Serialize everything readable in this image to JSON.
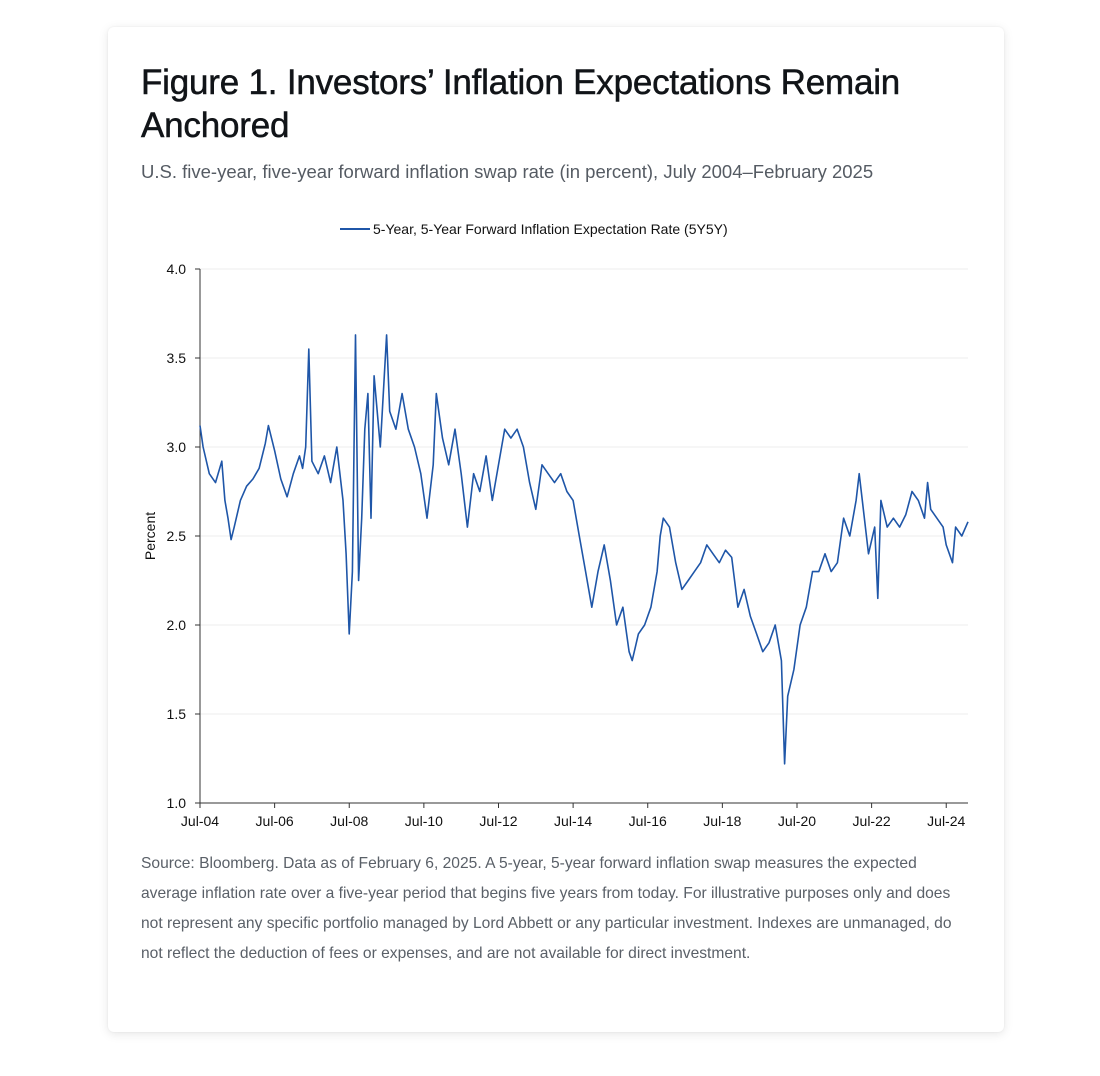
{
  "figure": {
    "title": "Figure 1. Investors’ Inflation Expectations Remain Anchored",
    "subtitle": "U.S. five-year, five-year forward inflation swap rate (in percent), July 2004–February 2025",
    "note": "Source: Bloomberg. Data as of February 6, 2025. A 5-year, 5-year forward inflation swap measures the expected average inflation rate over a five-year period that begins five years from today. For illustrative purposes only and does not represent any specific portfolio managed by Lord Abbett or any particular investment. Indexes are unmanaged, do not reflect the deduction of fees or expenses, and are not available for direct investment."
  },
  "chart_data": {
    "type": "line",
    "ylabel": "Percent",
    "xlabel": "",
    "ylim": [
      1.0,
      4.0
    ],
    "xlim": [
      "2004-07",
      "2025-02"
    ],
    "yticks": [
      "1.0",
      "1.5",
      "2.0",
      "2.5",
      "3.0",
      "3.5",
      "4.0"
    ],
    "xticks": [
      {
        "date": "2004-07",
        "label": "Jul-04"
      },
      {
        "date": "2006-07",
        "label": "Jul-06"
      },
      {
        "date": "2008-07",
        "label": "Jul-08"
      },
      {
        "date": "2010-07",
        "label": "Jul-10"
      },
      {
        "date": "2012-07",
        "label": "Jul-12"
      },
      {
        "date": "2014-07",
        "label": "Jul-14"
      },
      {
        "date": "2016-07",
        "label": "Jul-16"
      },
      {
        "date": "2018-07",
        "label": "Jul-18"
      },
      {
        "date": "2020-07",
        "label": "Jul-20"
      },
      {
        "date": "2022-07",
        "label": "Jul-22"
      },
      {
        "date": "2024-07",
        "label": "Jul-24"
      }
    ],
    "grid": true,
    "legend_position": "top-center",
    "series": [
      {
        "name": "5-Year, 5-Year Forward Inflation Expectation Rate (5Y5Y)",
        "color": "#1f56a8",
        "points": [
          [
            "2004-07",
            3.12
          ],
          [
            "2004-08",
            3.0
          ],
          [
            "2004-10",
            2.85
          ],
          [
            "2004-12",
            2.8
          ],
          [
            "2005-02",
            2.92
          ],
          [
            "2005-03",
            2.7
          ],
          [
            "2005-04",
            2.6
          ],
          [
            "2005-05",
            2.48
          ],
          [
            "2005-06",
            2.55
          ],
          [
            "2005-08",
            2.7
          ],
          [
            "2005-10",
            2.78
          ],
          [
            "2005-12",
            2.82
          ],
          [
            "2006-02",
            2.88
          ],
          [
            "2006-04",
            3.02
          ],
          [
            "2006-05",
            3.12
          ],
          [
            "2006-06",
            3.05
          ],
          [
            "2006-07",
            2.98
          ],
          [
            "2006-09",
            2.82
          ],
          [
            "2006-11",
            2.72
          ],
          [
            "2007-01",
            2.85
          ],
          [
            "2007-03",
            2.95
          ],
          [
            "2007-04",
            2.88
          ],
          [
            "2007-05",
            3.0
          ],
          [
            "2007-06",
            3.55
          ],
          [
            "2007-07",
            2.92
          ],
          [
            "2007-09",
            2.85
          ],
          [
            "2007-11",
            2.95
          ],
          [
            "2008-01",
            2.8
          ],
          [
            "2008-03",
            3.0
          ],
          [
            "2008-05",
            2.7
          ],
          [
            "2008-06",
            2.4
          ],
          [
            "2008-07",
            1.95
          ],
          [
            "2008-08",
            2.3
          ],
          [
            "2008-09",
            3.63
          ],
          [
            "2008-10",
            2.25
          ],
          [
            "2008-11",
            2.6
          ],
          [
            "2008-12",
            3.1
          ],
          [
            "2009-01",
            3.3
          ],
          [
            "2009-02",
            2.6
          ],
          [
            "2009-03",
            3.4
          ],
          [
            "2009-05",
            3.0
          ],
          [
            "2009-07",
            3.63
          ],
          [
            "2009-08",
            3.2
          ],
          [
            "2009-10",
            3.1
          ],
          [
            "2009-12",
            3.3
          ],
          [
            "2010-02",
            3.1
          ],
          [
            "2010-04",
            3.0
          ],
          [
            "2010-06",
            2.85
          ],
          [
            "2010-08",
            2.6
          ],
          [
            "2010-10",
            2.9
          ],
          [
            "2010-11",
            3.3
          ],
          [
            "2011-01",
            3.05
          ],
          [
            "2011-03",
            2.9
          ],
          [
            "2011-05",
            3.1
          ],
          [
            "2011-07",
            2.85
          ],
          [
            "2011-09",
            2.55
          ],
          [
            "2011-11",
            2.85
          ],
          [
            "2012-01",
            2.75
          ],
          [
            "2012-03",
            2.95
          ],
          [
            "2012-05",
            2.7
          ],
          [
            "2012-07",
            2.9
          ],
          [
            "2012-09",
            3.1
          ],
          [
            "2012-11",
            3.05
          ],
          [
            "2013-01",
            3.1
          ],
          [
            "2013-03",
            3.0
          ],
          [
            "2013-05",
            2.8
          ],
          [
            "2013-07",
            2.65
          ],
          [
            "2013-09",
            2.9
          ],
          [
            "2013-11",
            2.85
          ],
          [
            "2014-01",
            2.8
          ],
          [
            "2014-03",
            2.85
          ],
          [
            "2014-05",
            2.75
          ],
          [
            "2014-07",
            2.7
          ],
          [
            "2014-09",
            2.5
          ],
          [
            "2014-11",
            2.3
          ],
          [
            "2015-01",
            2.1
          ],
          [
            "2015-03",
            2.3
          ],
          [
            "2015-05",
            2.45
          ],
          [
            "2015-07",
            2.25
          ],
          [
            "2015-09",
            2.0
          ],
          [
            "2015-11",
            2.1
          ],
          [
            "2016-01",
            1.85
          ],
          [
            "2016-02",
            1.8
          ],
          [
            "2016-04",
            1.95
          ],
          [
            "2016-06",
            2.0
          ],
          [
            "2016-08",
            2.1
          ],
          [
            "2016-10",
            2.3
          ],
          [
            "2016-11",
            2.5
          ],
          [
            "2016-12",
            2.6
          ],
          [
            "2017-02",
            2.55
          ],
          [
            "2017-04",
            2.35
          ],
          [
            "2017-06",
            2.2
          ],
          [
            "2017-08",
            2.25
          ],
          [
            "2017-10",
            2.3
          ],
          [
            "2017-12",
            2.35
          ],
          [
            "2018-02",
            2.45
          ],
          [
            "2018-04",
            2.4
          ],
          [
            "2018-06",
            2.35
          ],
          [
            "2018-08",
            2.42
          ],
          [
            "2018-10",
            2.38
          ],
          [
            "2018-12",
            2.1
          ],
          [
            "2019-02",
            2.2
          ],
          [
            "2019-04",
            2.05
          ],
          [
            "2019-06",
            1.95
          ],
          [
            "2019-08",
            1.85
          ],
          [
            "2019-10",
            1.9
          ],
          [
            "2019-12",
            2.0
          ],
          [
            "2020-02",
            1.8
          ],
          [
            "2020-03",
            1.22
          ],
          [
            "2020-04",
            1.6
          ],
          [
            "2020-06",
            1.75
          ],
          [
            "2020-08",
            2.0
          ],
          [
            "2020-10",
            2.1
          ],
          [
            "2020-12",
            2.3
          ],
          [
            "2021-02",
            2.3
          ],
          [
            "2021-04",
            2.4
          ],
          [
            "2021-06",
            2.3
          ],
          [
            "2021-08",
            2.35
          ],
          [
            "2021-10",
            2.6
          ],
          [
            "2021-12",
            2.5
          ],
          [
            "2022-02",
            2.7
          ],
          [
            "2022-03",
            2.85
          ],
          [
            "2022-04",
            2.7
          ],
          [
            "2022-06",
            2.4
          ],
          [
            "2022-08",
            2.55
          ],
          [
            "2022-09",
            2.15
          ],
          [
            "2022-10",
            2.7
          ],
          [
            "2022-12",
            2.55
          ],
          [
            "2023-02",
            2.6
          ],
          [
            "2023-04",
            2.55
          ],
          [
            "2023-06",
            2.62
          ],
          [
            "2023-08",
            2.75
          ],
          [
            "2023-10",
            2.7
          ],
          [
            "2023-12",
            2.6
          ],
          [
            "2024-01",
            2.8
          ],
          [
            "2024-02",
            2.65
          ],
          [
            "2024-04",
            2.6
          ],
          [
            "2024-06",
            2.55
          ],
          [
            "2024-07",
            2.45
          ],
          [
            "2024-09",
            2.35
          ],
          [
            "2024-10",
            2.55
          ],
          [
            "2024-12",
            2.5
          ],
          [
            "2025-02",
            2.58
          ]
        ]
      }
    ]
  }
}
